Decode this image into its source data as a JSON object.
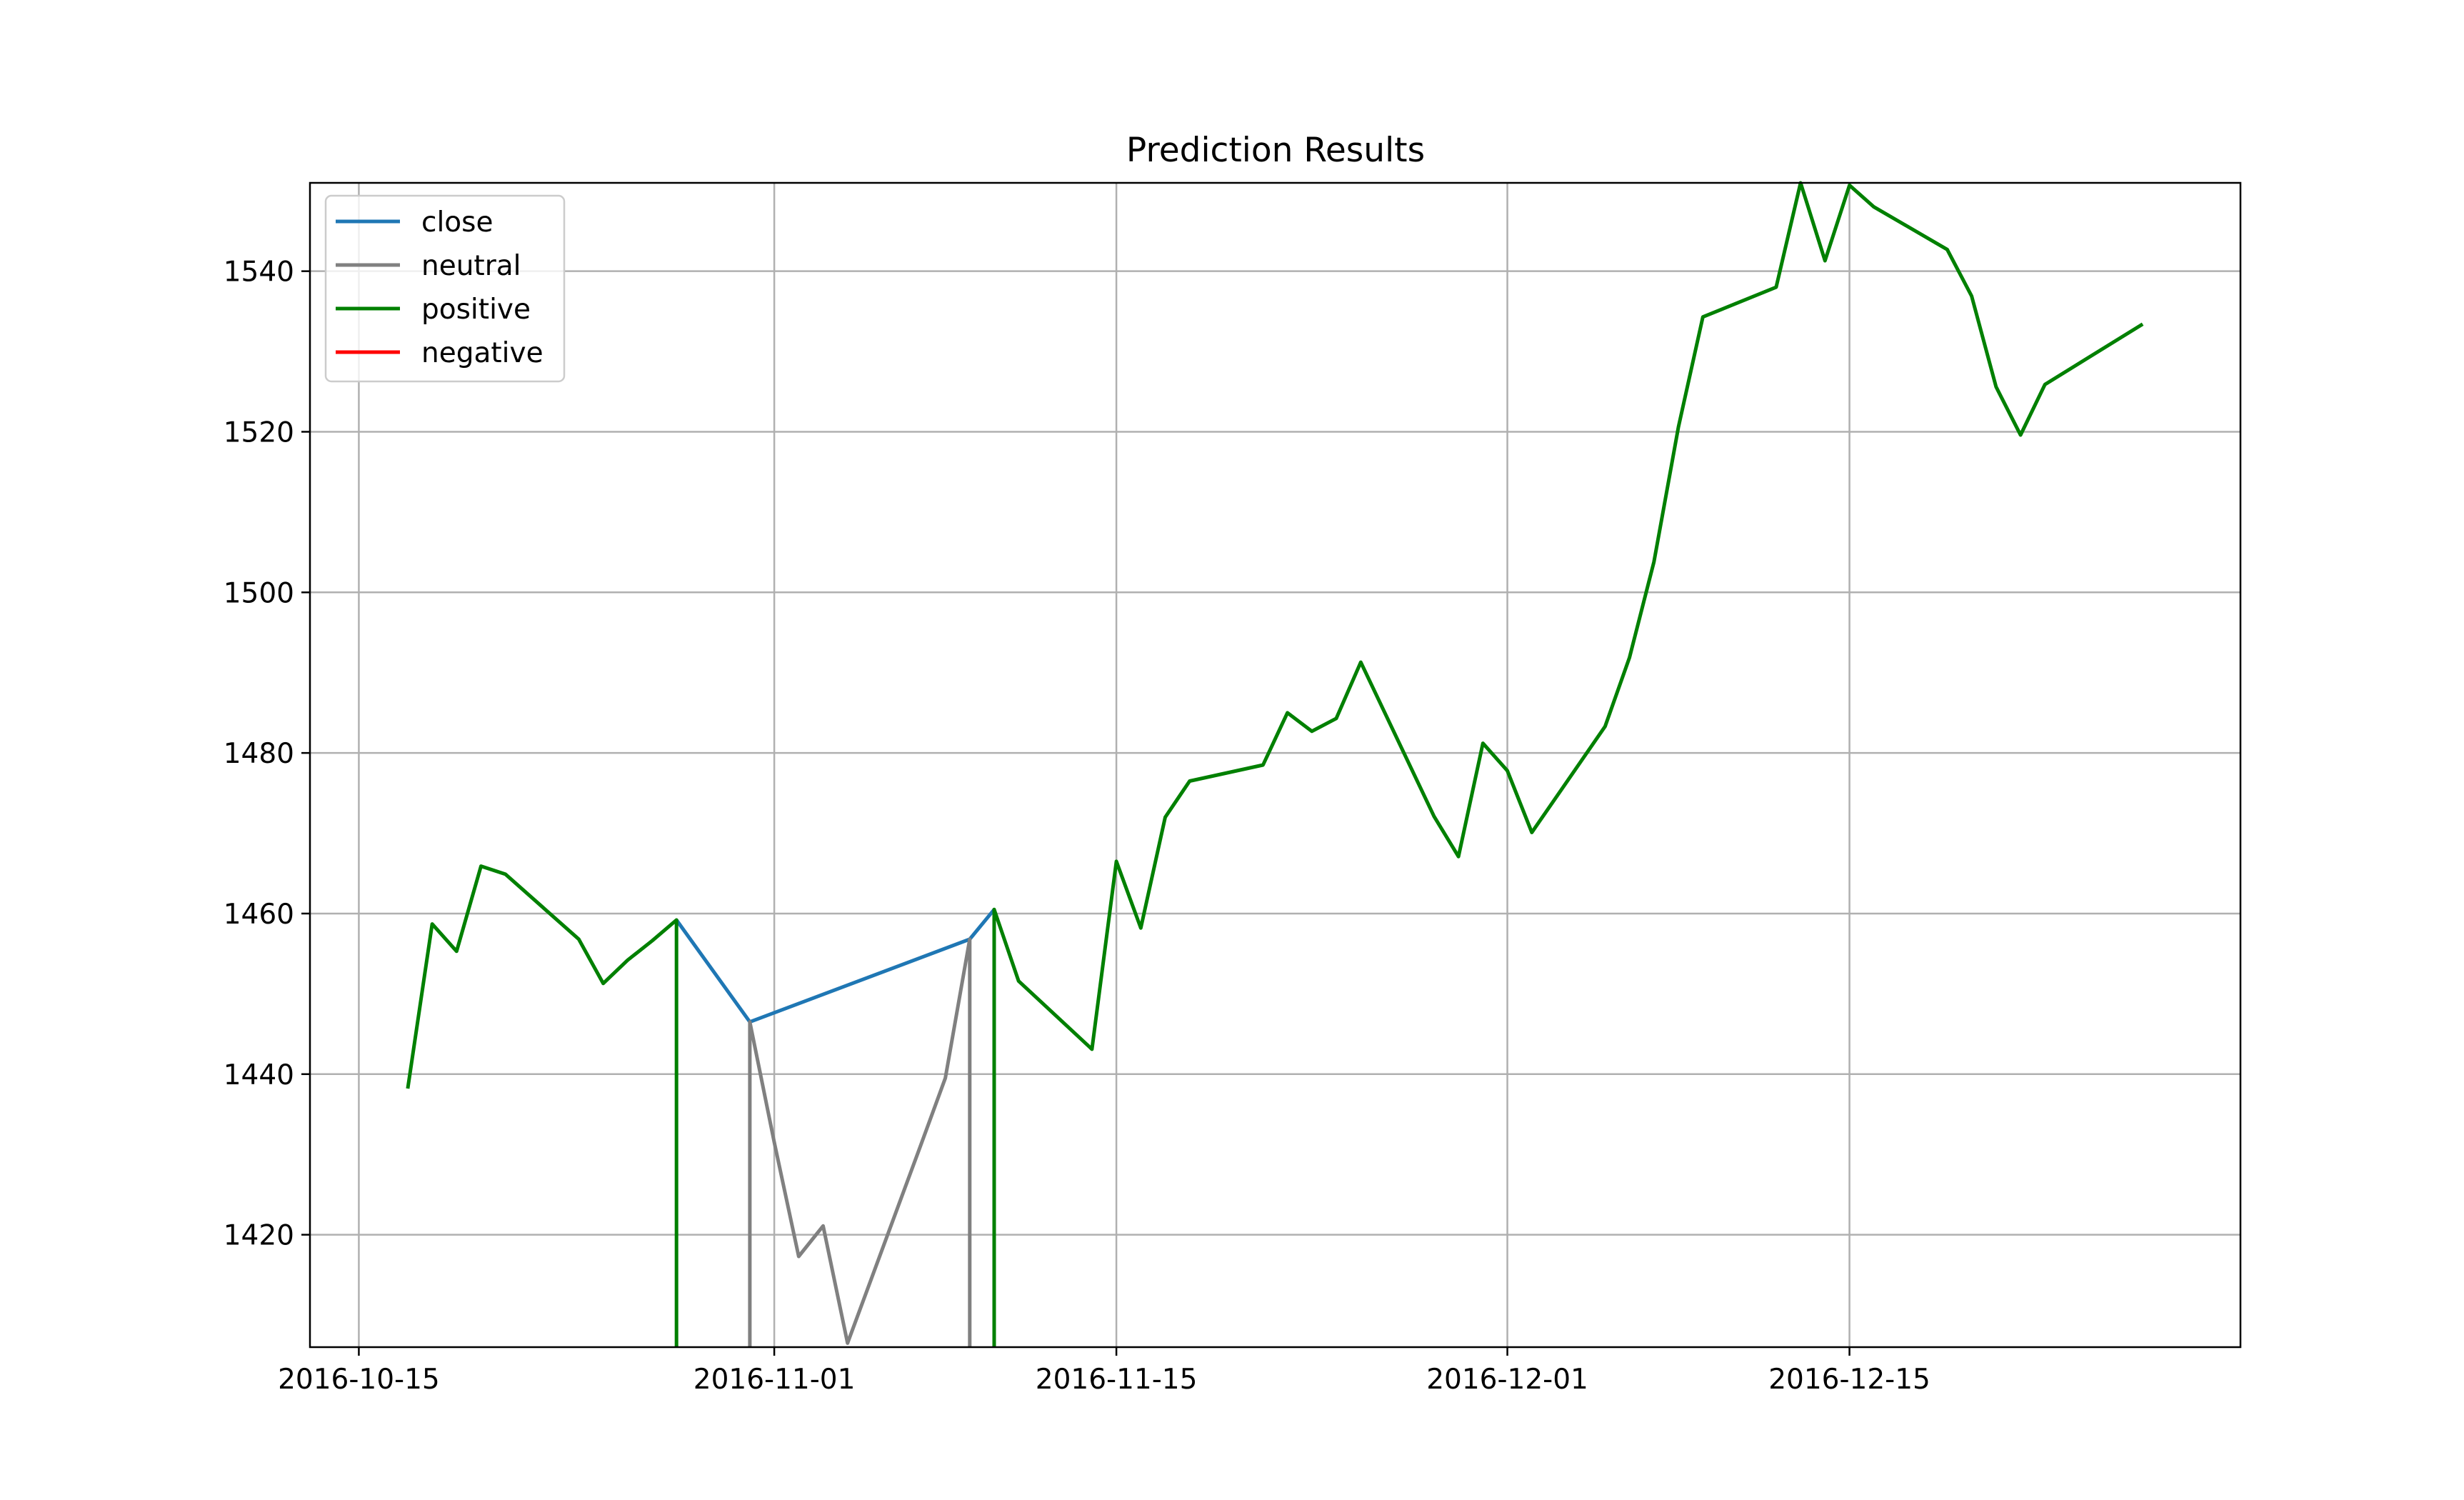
{
  "chart_data": {
    "type": "line",
    "title": "Prediction Results",
    "xlabel": "",
    "ylabel": "",
    "x_range": [
      "2016-10-13",
      "2016-12-31"
    ],
    "ylim": [
      1406,
      1551
    ],
    "x_ticks": [
      "2016-10-15",
      "2016-11-01",
      "2016-11-15",
      "2016-12-01",
      "2016-12-15"
    ],
    "y_ticks": [
      1420,
      1440,
      1460,
      1480,
      1500,
      1520,
      1540
    ],
    "grid": true,
    "legend_position": "top-left",
    "series": [
      {
        "name": "close",
        "color": "#1f77b4",
        "points": [
          [
            "2016-10-28",
            1459.2
          ],
          [
            "2016-10-31",
            1446.5
          ],
          [
            "2016-11-09",
            1456.8
          ],
          [
            "2016-11-10",
            1460.5
          ]
        ]
      },
      {
        "name": "neutral",
        "color": "#808080",
        "points": [
          [
            "2016-10-31",
            1406
          ],
          [
            "2016-10-31",
            1446.5
          ],
          [
            "2016-11-01",
            1431.5
          ],
          [
            "2016-11-02",
            1417.3
          ],
          [
            "2016-11-03",
            1421.1
          ],
          [
            "2016-11-04",
            1406.5
          ],
          [
            "2016-11-07",
            1431.2
          ],
          [
            "2016-11-08",
            1439.5
          ],
          [
            "2016-11-09",
            1456.8
          ],
          [
            "2016-11-09",
            1406
          ]
        ]
      },
      {
        "name": "positive",
        "color": "#008000",
        "segments": [
          [
            [
              "2016-10-17",
              1438.2
            ],
            [
              "2016-10-18",
              1458.7
            ],
            [
              "2016-10-19",
              1455.3
            ],
            [
              "2016-10-20",
              1465.9
            ],
            [
              "2016-10-21",
              1464.9
            ],
            [
              "2016-10-24",
              1456.8
            ],
            [
              "2016-10-25",
              1451.3
            ],
            [
              "2016-10-26",
              1454.2
            ],
            [
              "2016-10-27",
              1456.6
            ],
            [
              "2016-10-28",
              1459.2
            ],
            [
              "2016-10-28",
              1406
            ]
          ],
          [
            [
              "2016-11-10",
              1406
            ],
            [
              "2016-11-10",
              1460.5
            ],
            [
              "2016-11-11",
              1451.6
            ],
            [
              "2016-11-14",
              1443.1
            ],
            [
              "2016-11-15",
              1466.5
            ],
            [
              "2016-11-16",
              1458.2
            ],
            [
              "2016-11-17",
              1472.0
            ],
            [
              "2016-11-18",
              1476.5
            ],
            [
              "2016-11-21",
              1478.5
            ],
            [
              "2016-11-22",
              1485.0
            ],
            [
              "2016-11-23",
              1482.7
            ],
            [
              "2016-11-24",
              1484.3
            ],
            [
              "2016-11-25",
              1491.3
            ],
            [
              "2016-11-28",
              1472.1
            ],
            [
              "2016-11-29",
              1467.1
            ],
            [
              "2016-11-30",
              1481.2
            ],
            [
              "2016-12-01",
              1477.8
            ],
            [
              "2016-12-02",
              1470.1
            ],
            [
              "2016-12-05",
              1483.3
            ],
            [
              "2016-12-06",
              1491.9
            ],
            [
              "2016-12-07",
              1503.8
            ],
            [
              "2016-12-08",
              1520.6
            ],
            [
              "2016-12-09",
              1534.3
            ],
            [
              "2016-12-12",
              1538.0
            ],
            [
              "2016-12-13",
              1551.0
            ],
            [
              "2016-12-14",
              1541.3
            ],
            [
              "2016-12-15",
              1550.7
            ],
            [
              "2016-12-16",
              1548.0
            ],
            [
              "2016-12-19",
              1542.7
            ],
            [
              "2016-12-20",
              1536.9
            ],
            [
              "2016-12-21",
              1525.6
            ],
            [
              "2016-12-22",
              1519.6
            ],
            [
              "2016-12-23",
              1525.9
            ],
            [
              "2016-12-27",
              1533.4
            ]
          ]
        ]
      },
      {
        "name": "negative",
        "color": "#ff0000",
        "points": []
      }
    ]
  }
}
